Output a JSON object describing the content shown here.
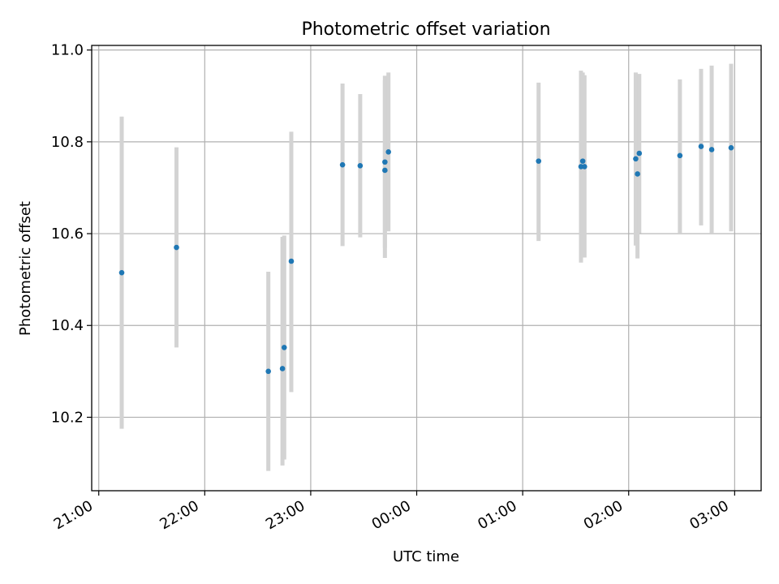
{
  "chart_data": {
    "type": "scatter",
    "title": "Photometric offset variation",
    "xlabel": "UTC time",
    "ylabel": "Photometric offset",
    "grid": true,
    "x_axis_type": "time",
    "xlim": [
      "20:56",
      "03:15"
    ],
    "ylim": [
      10.04,
      11.01
    ],
    "x_ticks": [
      "21:00",
      "22:00",
      "23:00",
      "00:00",
      "01:00",
      "02:00",
      "03:00"
    ],
    "y_ticks": [
      "10.2",
      "10.4",
      "10.6",
      "10.8",
      "11.0"
    ],
    "colors": {
      "point": "#1f77b4",
      "error_bar": "#d3d3d3",
      "grid": "#b0b0b0"
    },
    "points": [
      {
        "x": "21:13",
        "y": 10.515,
        "ylow": 10.175,
        "yhigh": 10.855
      },
      {
        "x": "21:44",
        "y": 10.57,
        "ylow": 10.352,
        "yhigh": 10.788
      },
      {
        "x": "22:36",
        "y": 10.3,
        "ylow": 10.083,
        "yhigh": 10.517
      },
      {
        "x": "22:44",
        "y": 10.306,
        "ylow": 10.095,
        "yhigh": 10.593
      },
      {
        "x": "22:45",
        "y": 10.352,
        "ylow": 10.108,
        "yhigh": 10.596
      },
      {
        "x": "22:49",
        "y": 10.54,
        "ylow": 10.255,
        "yhigh": 10.822
      },
      {
        "x": "23:18",
        "y": 10.75,
        "ylow": 10.573,
        "yhigh": 10.927
      },
      {
        "x": "23:28",
        "y": 10.748,
        "ylow": 10.592,
        "yhigh": 10.904
      },
      {
        "x": "23:42",
        "y": 10.738,
        "ylow": 10.547,
        "yhigh": 10.935
      },
      {
        "x": "23:42",
        "y": 10.756,
        "ylow": 10.569,
        "yhigh": 10.944
      },
      {
        "x": "23:44",
        "y": 10.778,
        "ylow": 10.605,
        "yhigh": 10.951
      },
      {
        "x": "01:09",
        "y": 10.758,
        "ylow": 10.584,
        "yhigh": 10.929
      },
      {
        "x": "01:33",
        "y": 10.746,
        "ylow": 10.537,
        "yhigh": 10.955
      },
      {
        "x": "01:34",
        "y": 10.758,
        "ylow": 10.554,
        "yhigh": 10.951
      },
      {
        "x": "01:35",
        "y": 10.746,
        "ylow": 10.548,
        "yhigh": 10.945
      },
      {
        "x": "02:04",
        "y": 10.763,
        "ylow": 10.574,
        "yhigh": 10.951
      },
      {
        "x": "02:05",
        "y": 10.73,
        "ylow": 10.546,
        "yhigh": 10.914
      },
      {
        "x": "02:06",
        "y": 10.775,
        "ylow": 10.601,
        "yhigh": 10.948
      },
      {
        "x": "02:29",
        "y": 10.77,
        "ylow": 10.6,
        "yhigh": 10.936
      },
      {
        "x": "02:41",
        "y": 10.79,
        "ylow": 10.618,
        "yhigh": 10.959
      },
      {
        "x": "02:47",
        "y": 10.783,
        "ylow": 10.6,
        "yhigh": 10.966
      },
      {
        "x": "02:58",
        "y": 10.787,
        "ylow": 10.605,
        "yhigh": 10.97
      }
    ]
  }
}
